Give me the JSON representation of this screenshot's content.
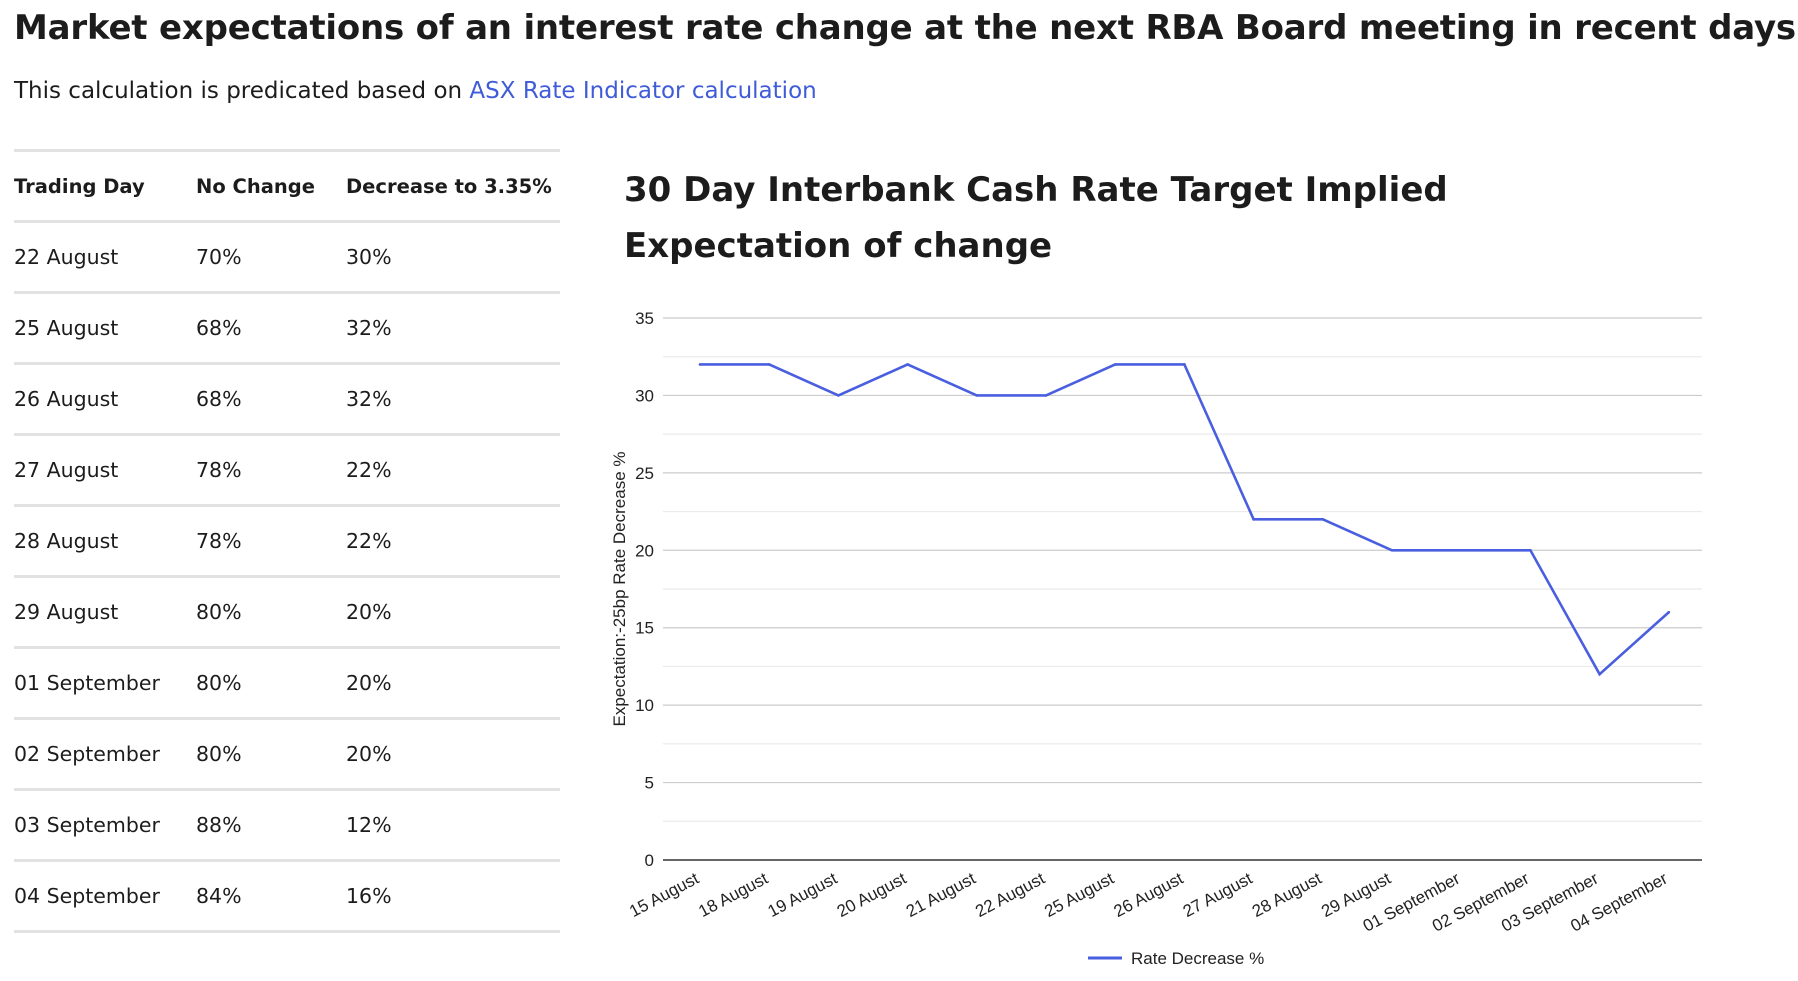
{
  "header": {
    "title": "Market expectations of an interest rate change at the next RBA Board meeting in recent days.",
    "subtitle_prefix": "This calculation is predicated based on ",
    "subtitle_link": "ASX Rate Indicator calculation"
  },
  "table": {
    "columns": [
      "Trading Day",
      "No Change",
      "Decrease to 3.35%"
    ],
    "rows": [
      [
        "22 August",
        "70%",
        "30%"
      ],
      [
        "25 August",
        "68%",
        "32%"
      ],
      [
        "26 August",
        "68%",
        "32%"
      ],
      [
        "27 August",
        "78%",
        "22%"
      ],
      [
        "28 August",
        "78%",
        "22%"
      ],
      [
        "29 August",
        "80%",
        "20%"
      ],
      [
        "01 September",
        "80%",
        "20%"
      ],
      [
        "02 September",
        "80%",
        "20%"
      ],
      [
        "03 September",
        "88%",
        "12%"
      ],
      [
        "04 September",
        "84%",
        "16%"
      ]
    ]
  },
  "chart_data": {
    "type": "line",
    "title": "30 Day Interbank Cash Rate Target Implied Expectation of change",
    "xlabel": "",
    "ylabel": "Expectation:-25bp Rate Decrease %",
    "ylim": [
      0,
      35
    ],
    "yticks": [
      0,
      5,
      10,
      15,
      20,
      25,
      30,
      35
    ],
    "categories": [
      "15 August",
      "18 August",
      "19 August",
      "20 August",
      "21 August",
      "22 August",
      "25 August",
      "26 August",
      "27 August",
      "28 August",
      "29 August",
      "01 September",
      "02 September",
      "03 September",
      "04 September"
    ],
    "series": [
      {
        "name": "Rate Decrease %",
        "color": "#4a5fe0",
        "values": [
          32,
          32,
          30,
          32,
          30,
          30,
          32,
          32,
          22,
          22,
          20,
          20,
          20,
          12,
          16
        ]
      }
    ],
    "grid": true,
    "legend": "bottom"
  }
}
